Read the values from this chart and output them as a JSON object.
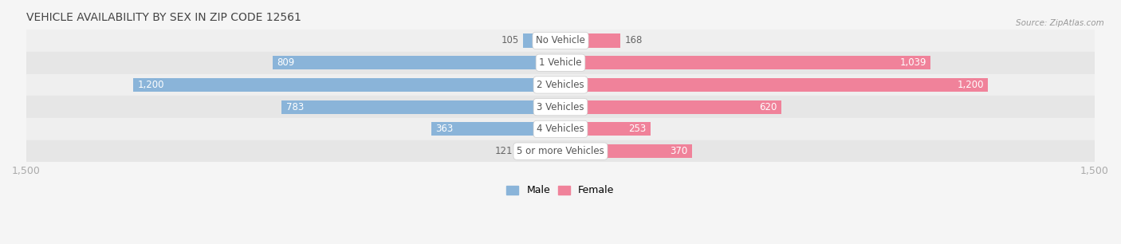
{
  "title": "VEHICLE AVAILABILITY BY SEX IN ZIP CODE 12561",
  "source": "Source: ZipAtlas.com",
  "categories": [
    "No Vehicle",
    "1 Vehicle",
    "2 Vehicles",
    "3 Vehicles",
    "4 Vehicles",
    "5 or more Vehicles"
  ],
  "male_values": [
    105,
    809,
    1200,
    783,
    363,
    121
  ],
  "female_values": [
    168,
    1039,
    1200,
    620,
    253,
    370
  ],
  "male_color": "#8ab4d9",
  "female_color": "#f0829a",
  "male_label": "Male",
  "female_label": "Female",
  "xlim": 1500,
  "bar_height": 0.62,
  "row_bg_even": "#efefef",
  "row_bg_odd": "#e6e6e6",
  "label_color_inside": "#ffffff",
  "label_color_outside": "#666666",
  "center_label_color": "#555555",
  "axis_label_color": "#aaaaaa",
  "background_color": "#f5f5f5",
  "inside_threshold": 180
}
